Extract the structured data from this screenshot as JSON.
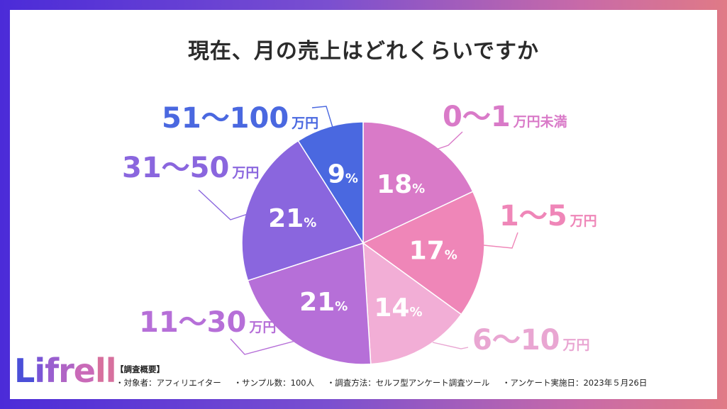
{
  "title": "現在、月の売上はどれくらいですか",
  "chart_data": {
    "type": "pie",
    "title": "現在、月の売上はどれくらいですか",
    "unit": "%",
    "slices": [
      {
        "label": "0～1万円未満",
        "label_num": "0～1",
        "label_unit": "万円未満",
        "value": 18,
        "color": "#d97ac8",
        "label_color": "#d97ac8"
      },
      {
        "label": "1～5万円",
        "label_num": "1～5",
        "label_unit": "万円",
        "value": 17,
        "color": "#ef86b8",
        "label_color": "#ef86b8"
      },
      {
        "label": "6～10万円",
        "label_num": "6～10",
        "label_unit": "万円",
        "value": 14,
        "color": "#f2aed6",
        "label_color": "#e9a6d2"
      },
      {
        "label": "11～30万円",
        "label_num": "11～30",
        "label_unit": "万円",
        "value": 21,
        "color": "#b66fd8",
        "label_color": "#b66fd8"
      },
      {
        "label": "31～50万円",
        "label_num": "31～50",
        "label_unit": "万円",
        "value": 21,
        "color": "#8a66de",
        "label_color": "#8a66de"
      },
      {
        "label": "51～100万円",
        "label_num": "51～100",
        "label_unit": "万円",
        "value": 9,
        "color": "#4a68e0",
        "label_color": "#4a68e0"
      }
    ]
  },
  "logo": {
    "l": "L",
    "i": "i",
    "f": "f",
    "r": "r",
    "e": "e",
    "ll": "ll"
  },
  "survey": {
    "heading": "【調査概要】",
    "items": [
      "・対象者：アフィリエイター",
      "・サンプル数：100人",
      "・調査方法：セルフ型アンケート調査ツール",
      "・アンケート実施日：2023年５月26日"
    ]
  }
}
